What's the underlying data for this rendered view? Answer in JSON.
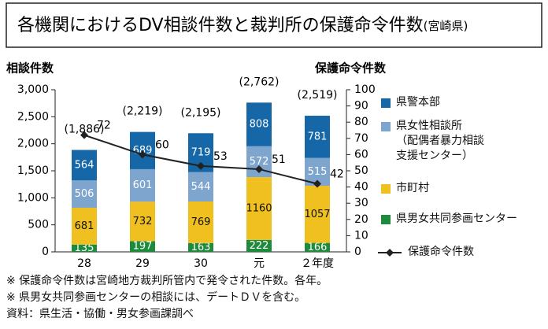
{
  "chart_data": {
    "type": "bar",
    "title": "各機関におけるDV相談件数と裁判所の保護命令件数",
    "subtitle": "(宮崎県)",
    "y_label": "相談件数",
    "y2_label": "保護命令件数",
    "categories": [
      "28",
      "29",
      "30",
      "元",
      "２年度"
    ],
    "series": [
      {
        "name": "県男女共同参画センター",
        "color": "#1e8a3c",
        "values": [
          135,
          197,
          163,
          222,
          166
        ]
      },
      {
        "name": "市町村",
        "color": "#f0c020",
        "values": [
          681,
          732,
          769,
          1160,
          1057
        ]
      },
      {
        "name": "県女性相談所\n（配偶者暴力相談\n支援センター）",
        "color": "#7ea5cd",
        "values": [
          506,
          601,
          544,
          572,
          515
        ]
      },
      {
        "name": "県警本部",
        "color": "#1667a8",
        "values": [
          564,
          689,
          719,
          808,
          781
        ]
      },
      {
        "name": "保護命令件数",
        "color": "#222222",
        "type": "line",
        "axis": "y2",
        "values": [
          72,
          60,
          53,
          51,
          42
        ]
      }
    ],
    "totals": [
      1886,
      2219,
      2195,
      2762,
      2519
    ],
    "total_labels": [
      "(1,886)",
      "(2,219)",
      "(2,195)",
      "(2,762)",
      "(2,519)"
    ],
    "ylim": [
      0,
      3000
    ],
    "yticks": [
      0,
      500,
      {
        "value": 1000,
        "label": "1,000"
      },
      {
        "value": 1500,
        "label": "1,500"
      },
      {
        "value": 2000,
        "label": "2,000"
      },
      {
        "value": 2500,
        "label": "2,500"
      },
      {
        "value": 3000,
        "label": "3,000"
      }
    ],
    "y2lim": [
      0,
      100
    ],
    "y2ticks": [
      0,
      10,
      20,
      30,
      40,
      50,
      60,
      70,
      80,
      90,
      100
    ],
    "notes": [
      "※ 保護命令件数は宮崎地方裁判所管内で発令された件数。各年。",
      "※ 県男女共同参画センターの相談には、デートＤＶを含む。",
      "資料：県生活・協働・男女参画課調べ"
    ]
  }
}
